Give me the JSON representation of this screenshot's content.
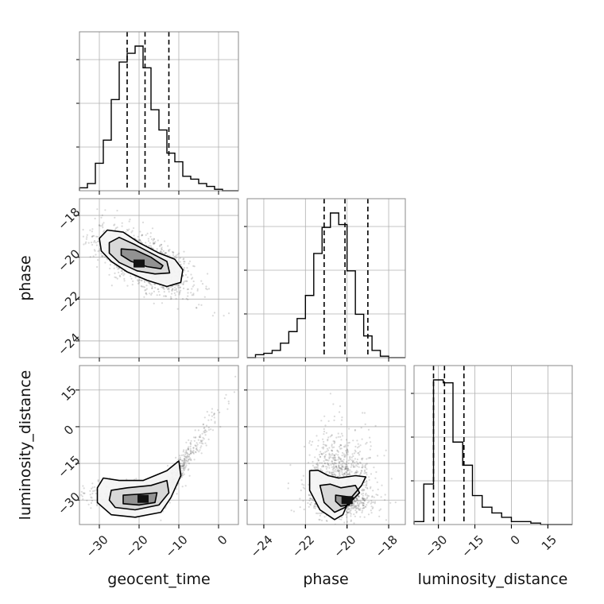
{
  "chart_data": {
    "type": "corner",
    "parameters": [
      "geocent_time",
      "phase",
      "luminosity_distance"
    ],
    "grid": true,
    "quantile_lines": "dashed",
    "colors": {
      "line": "#000000",
      "grid": "#b0b0b0",
      "points": "#555555",
      "frame": "#888888"
    },
    "axes": {
      "geocent_time": {
        "label": "geocent_time",
        "range": [
          -35,
          5
        ],
        "ticks": [
          -30,
          -20,
          -10,
          0
        ],
        "tick_labels": [
          "−30",
          "−20",
          "−10",
          "0"
        ]
      },
      "phase": {
        "label": "phase",
        "range": [
          -24.8,
          -17.2
        ],
        "ticks": [
          -24,
          -22,
          -20,
          -18
        ],
        "tick_labels": [
          "−24",
          "−22",
          "−20",
          "−18"
        ]
      },
      "luminosity_distance": {
        "label": "luminosity_distance",
        "range": [
          -40,
          25
        ],
        "ticks": [
          -30,
          -15,
          0,
          15
        ],
        "tick_labels": [
          "−30",
          "−15",
          "0",
          "15"
        ]
      }
    },
    "marginals": [
      {
        "parameter": "geocent_time",
        "bin_edges": [
          -35,
          -33,
          -31,
          -29,
          -27,
          -25,
          -23,
          -21,
          -19,
          -17,
          -15,
          -13,
          -11,
          -9,
          -7,
          -5,
          -3,
          -1,
          1,
          3,
          5
        ],
        "counts": [
          0.02,
          0.05,
          0.19,
          0.35,
          0.63,
          0.89,
          0.95,
          1.0,
          0.85,
          0.56,
          0.42,
          0.26,
          0.2,
          0.1,
          0.08,
          0.05,
          0.03,
          0.01,
          0.0,
          0.0
        ],
        "quantiles": [
          -23,
          -18.5,
          -12.5
        ]
      },
      {
        "parameter": "phase",
        "bin_edges": [
          -24.8,
          -24.4,
          -24.0,
          -23.6,
          -23.2,
          -22.8,
          -22.4,
          -22.0,
          -21.6,
          -21.2,
          -20.8,
          -20.4,
          -20.0,
          -19.6,
          -19.2,
          -18.8,
          -18.4,
          -18.0,
          -17.6,
          -17.2
        ],
        "counts": [
          0.0,
          0.02,
          0.03,
          0.05,
          0.1,
          0.18,
          0.27,
          0.43,
          0.72,
          0.9,
          1.0,
          0.92,
          0.6,
          0.3,
          0.15,
          0.05,
          0.01,
          0.0,
          0.0
        ],
        "quantiles": [
          -21.1,
          -20.1,
          -19.0
        ]
      },
      {
        "parameter": "luminosity_distance",
        "bin_edges": [
          -40,
          -36,
          -32,
          -28,
          -24,
          -20,
          -16,
          -12,
          -8,
          -4,
          0,
          4,
          8,
          12,
          16,
          20,
          25
        ],
        "counts": [
          0.02,
          0.28,
          1.0,
          0.98,
          0.57,
          0.41,
          0.2,
          0.12,
          0.08,
          0.05,
          0.02,
          0.02,
          0.01,
          0.0,
          0.0,
          0.0
        ],
        "quantiles": [
          -32.0,
          -27.5,
          -19.5
        ]
      }
    ],
    "joints": [
      {
        "x": "geocent_time",
        "y": "phase",
        "points_mean": [
          -19,
          -20.2
        ],
        "points_sd": [
          6.0,
          0.75
        ],
        "correlation": -0.62,
        "density_peak": [
          -20,
          -20.3
        ],
        "contours": [
          [
            [
              -30,
              -19.1
            ],
            [
              -28,
              -18.7
            ],
            [
              -24,
              -18.8
            ],
            [
              -20,
              -19.3
            ],
            [
              -15,
              -19.8
            ],
            [
              -11,
              -20.1
            ],
            [
              -9,
              -20.6
            ],
            [
              -9.5,
              -21.2
            ],
            [
              -13,
              -21.4
            ],
            [
              -18,
              -21.1
            ],
            [
              -23,
              -20.7
            ],
            [
              -27,
              -20.2
            ],
            [
              -29.5,
              -19.7
            ]
          ],
          [
            [
              -27.5,
              -19.3
            ],
            [
              -25,
              -19.05
            ],
            [
              -21,
              -19.4
            ],
            [
              -17,
              -19.8
            ],
            [
              -13,
              -20.2
            ],
            [
              -12.3,
              -20.75
            ],
            [
              -16,
              -20.8
            ],
            [
              -20.5,
              -20.65
            ],
            [
              -25,
              -20.25
            ],
            [
              -27.5,
              -19.8
            ]
          ],
          [
            [
              -24.5,
              -19.6
            ],
            [
              -21,
              -19.65
            ],
            [
              -17,
              -20.0
            ],
            [
              -14,
              -20.4
            ],
            [
              -14.5,
              -20.55
            ],
            [
              -18,
              -20.45
            ],
            [
              -22,
              -20.2
            ],
            [
              -24.5,
              -19.9
            ]
          ]
        ]
      },
      {
        "x": "geocent_time",
        "y": "luminosity_distance",
        "points_mean": [
          -17,
          -24
        ],
        "points_sd": [
          7.0,
          8.0
        ],
        "correlation": 0.5,
        "density_peak": [
          -19,
          -29.5
        ],
        "contours": [
          [
            [
              -29,
              -21
            ],
            [
              -25,
              -22
            ],
            [
              -19,
              -22
            ],
            [
              -13,
              -18
            ],
            [
              -10,
              -14
            ],
            [
              -9.5,
              -20
            ],
            [
              -12,
              -29
            ],
            [
              -14.5,
              -35
            ],
            [
              -21,
              -37
            ],
            [
              -27,
              -36
            ],
            [
              -30.5,
              -31
            ],
            [
              -30.5,
              -25
            ]
          ],
          [
            [
              -27,
              -26
            ],
            [
              -23,
              -25
            ],
            [
              -17,
              -24
            ],
            [
              -13,
              -22
            ],
            [
              -12.5,
              -27
            ],
            [
              -15,
              -32
            ],
            [
              -21,
              -34
            ],
            [
              -26,
              -33
            ],
            [
              -27.5,
              -30
            ]
          ],
          [
            [
              -24,
              -28
            ],
            [
              -19,
              -27.5
            ],
            [
              -15.5,
              -27
            ],
            [
              -16,
              -31
            ],
            [
              -20,
              -32
            ],
            [
              -24,
              -31.5
            ]
          ]
        ]
      },
      {
        "x": "phase",
        "y": "luminosity_distance",
        "points_mean": [
          -20.3,
          -22
        ],
        "points_sd": [
          0.75,
          11.0
        ],
        "correlation": -0.4,
        "density_peak": [
          -20,
          -30
        ],
        "contours": [
          [
            [
              -21.8,
              -18
            ],
            [
              -21.4,
              -17.8
            ],
            [
              -20.9,
              -20
            ],
            [
              -20.4,
              -21
            ],
            [
              -19.6,
              -20
            ],
            [
              -19.1,
              -20.5
            ],
            [
              -19.3,
              -24
            ],
            [
              -19.9,
              -30
            ],
            [
              -20.2,
              -36
            ],
            [
              -20.6,
              -38
            ],
            [
              -21.3,
              -34
            ],
            [
              -21.8,
              -26
            ]
          ],
          [
            [
              -21.3,
              -24
            ],
            [
              -20.8,
              -23.5
            ],
            [
              -20.3,
              -25
            ],
            [
              -19.6,
              -24
            ],
            [
              -19.4,
              -27
            ],
            [
              -20.1,
              -33
            ],
            [
              -20.6,
              -35
            ],
            [
              -21.1,
              -31
            ]
          ],
          [
            [
              -20.55,
              -28
            ],
            [
              -20.1,
              -28.5
            ],
            [
              -19.7,
              -29
            ],
            [
              -19.9,
              -32
            ],
            [
              -20.3,
              -32.5
            ],
            [
              -20.55,
              -30.5
            ]
          ]
        ]
      }
    ]
  }
}
